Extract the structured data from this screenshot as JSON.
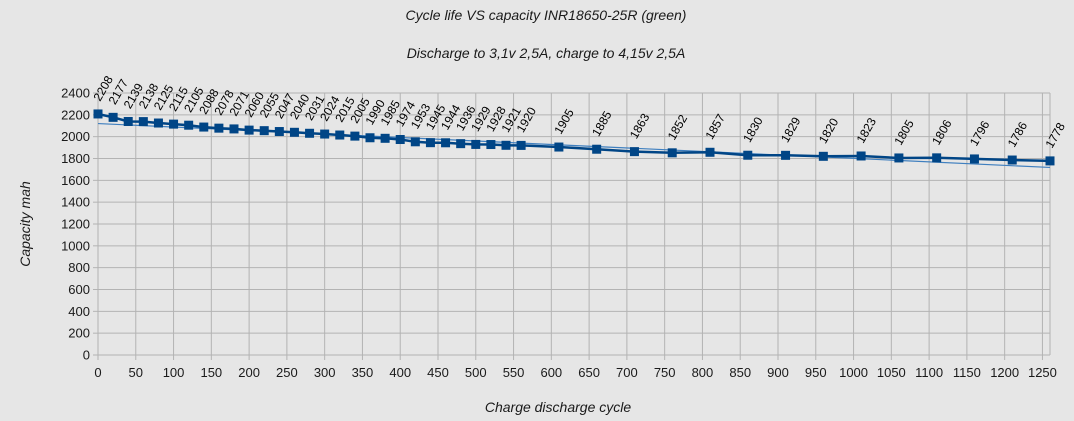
{
  "chart_data": {
    "type": "line",
    "title": "Cycle life VS capacity INR18650-25R (green)",
    "subtitle": "Discharge to 3,1v 2,5A, charge to 4,15v 2,5A",
    "xlabel": "Charge discharge cycle",
    "ylabel": "Capacity mah",
    "xlim": [
      0,
      1260
    ],
    "ylim": [
      0,
      2400
    ],
    "x_ticks": [
      0,
      50,
      100,
      150,
      200,
      250,
      300,
      350,
      400,
      450,
      500,
      550,
      600,
      650,
      700,
      750,
      800,
      850,
      900,
      950,
      1000,
      1050,
      1100,
      1150,
      1200,
      1250
    ],
    "y_ticks": [
      0,
      200,
      400,
      600,
      800,
      1000,
      1200,
      1400,
      1600,
      1800,
      2000,
      2200,
      2400
    ],
    "grid": true,
    "colors": {
      "series": "#004586",
      "trend": "#3f7fbf",
      "grid": "#b3b3b3",
      "background": "#e6e6e6"
    },
    "series": [
      {
        "marker": "square",
        "x": [
          0,
          20,
          40,
          60,
          80,
          100,
          120,
          140,
          160,
          180,
          200,
          220,
          240,
          260,
          280,
          300,
          320,
          340,
          360,
          380,
          400,
          420,
          440,
          460,
          480,
          500,
          520,
          540,
          560,
          610,
          660,
          710,
          760,
          810,
          860,
          910,
          960,
          1010,
          1060,
          1110,
          1160,
          1210,
          1260
        ],
        "y": [
          2208,
          2177,
          2139,
          2138,
          2125,
          2115,
          2105,
          2088,
          2078,
          2071,
          2060,
          2055,
          2047,
          2040,
          2031,
          2024,
          2015,
          2005,
          1990,
          1985,
          1974,
          1953,
          1945,
          1944,
          1936,
          1929,
          1928,
          1921,
          1920,
          1905,
          1885,
          1863,
          1852,
          1857,
          1830,
          1829,
          1820,
          1823,
          1805,
          1806,
          1796,
          1786,
          1778
        ],
        "labels": [
          "2208",
          "2177",
          "2139",
          "2138",
          "2125",
          "2115",
          "2105",
          "2088",
          "2078",
          "2071",
          "2060",
          "2055",
          "2047",
          "2040",
          "2031",
          "2024",
          "2015",
          "2005",
          "1990",
          "1985",
          "1974",
          "1953",
          "1945",
          "1944",
          "1936",
          "1929",
          "1928",
          "1921",
          "1920",
          "1905",
          "1885",
          "1863",
          "1852",
          "1857",
          "1830",
          "1829",
          "1820",
          "1823",
          "1805",
          "1806",
          "1796",
          "1786",
          "1778"
        ]
      }
    ],
    "trendline": {
      "type": "linear",
      "x": [
        0,
        1260
      ],
      "y": [
        2120,
        1718
      ]
    }
  }
}
